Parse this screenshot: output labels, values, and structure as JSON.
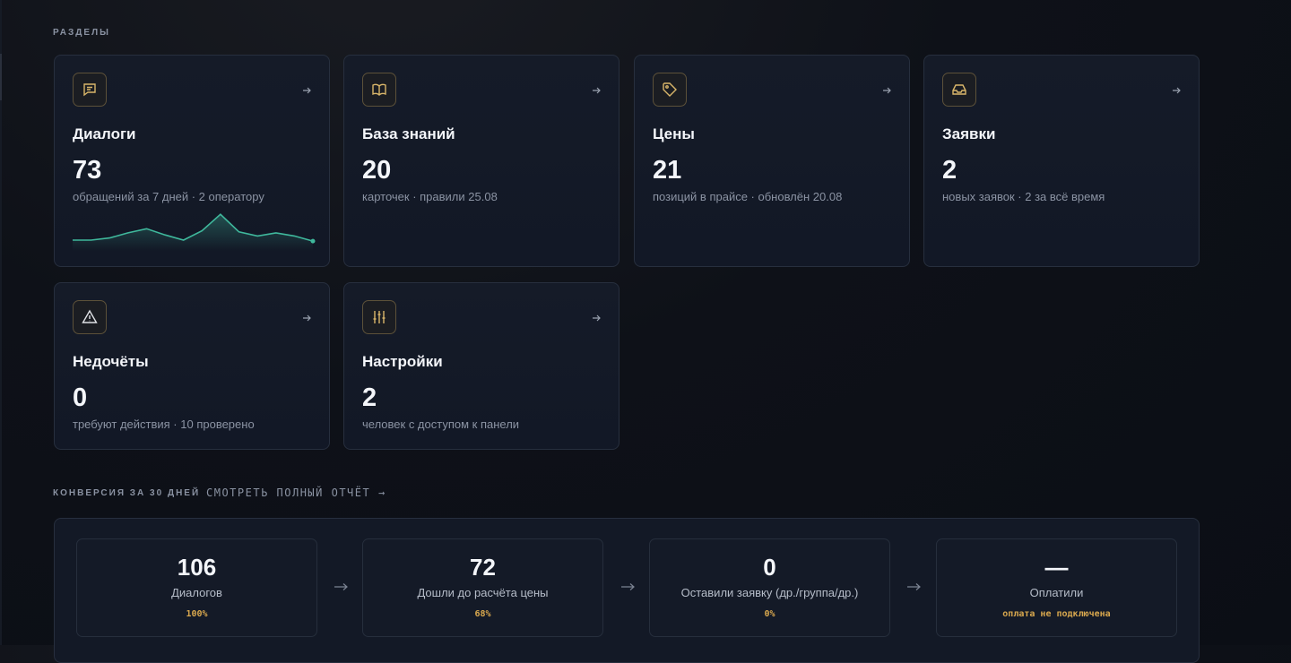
{
  "sections_label": "РАЗДЕЛЫ",
  "cards": [
    {
      "title": "Диалоги",
      "value": 73,
      "subtitle": "обращений за 7 дней · 2 оператору",
      "sparkline": [
        7,
        7,
        9,
        14,
        18,
        12,
        7,
        16,
        32,
        15,
        11,
        14,
        11,
        6
      ]
    },
    {
      "title": "База знаний",
      "value": 20,
      "subtitle": "карточек · правили 25.08"
    },
    {
      "title": "Цены",
      "value": 21,
      "subtitle": "позиций в прайсе · обновлён 20.08"
    },
    {
      "title": "Заявки",
      "value": 2,
      "subtitle": "новых заявок · 2 за всё время"
    },
    {
      "title": "Недочёты",
      "value": 0,
      "subtitle": "требуют действия · 10 проверено"
    },
    {
      "title": "Настройки",
      "value": 2,
      "subtitle": "человек с доступом к панели"
    }
  ],
  "conversion": {
    "label": "КОНВЕРСИЯ ЗА 30 ДНЕЙ",
    "link": "СМОТРЕТЬ ПОЛНЫЙ ОТЧЁТ →",
    "steps": [
      {
        "value": 106,
        "label": "Диалогов",
        "note": "100%"
      },
      {
        "value": 72,
        "label": "Дошли до расчёта цены",
        "note": "68%"
      },
      {
        "value": 0,
        "label": "Оставили заявку (др./группа/др.)",
        "note": "0%"
      },
      {
        "value": "—",
        "label": "Оплатили",
        "note": "оплата не подключена"
      }
    ]
  }
}
